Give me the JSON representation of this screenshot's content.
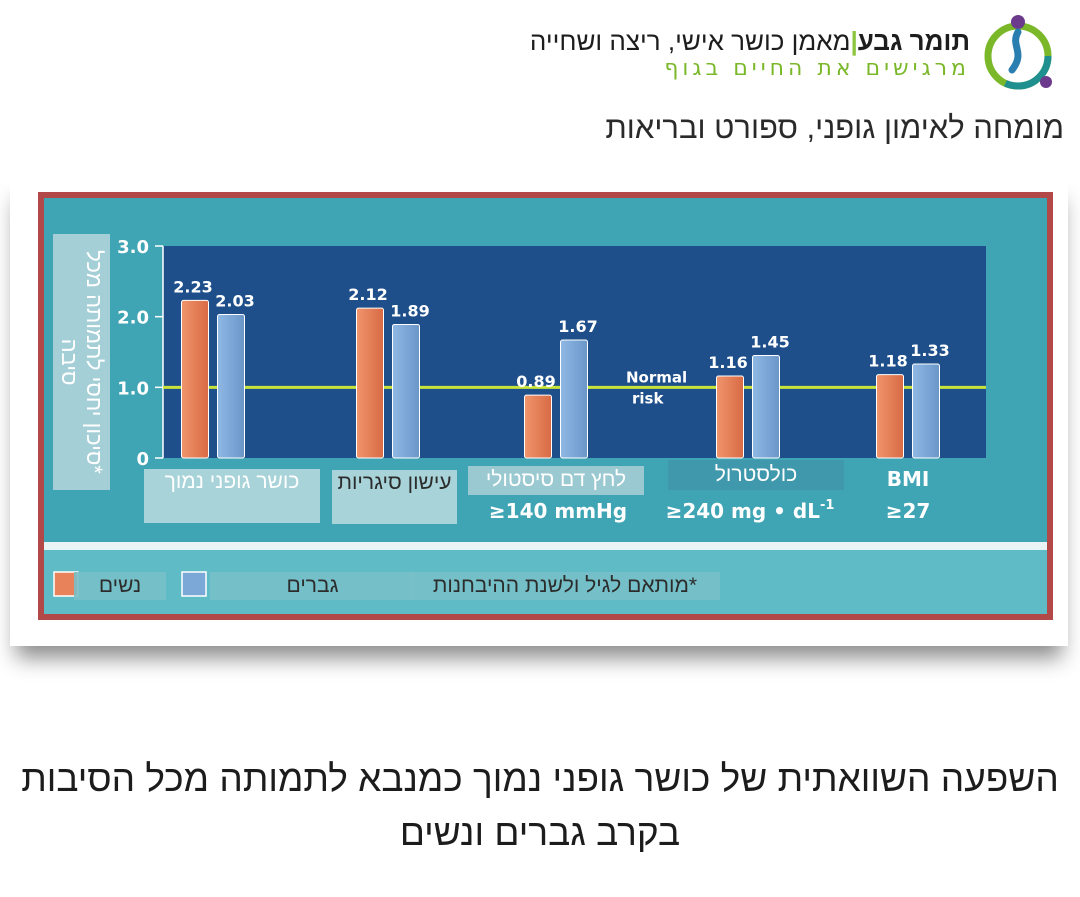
{
  "header": {
    "brand_name": "תומר גבע",
    "brand_separator": "|",
    "brand_desc": "מאמן כושר אישי, ריצה ושחייה",
    "tagline": "מרגישים את החיים בגוף",
    "subtitle": "מומחה לאימון גופני, ספורט ובריאות",
    "logo_icon": "runner-logo-icon"
  },
  "chart_data": {
    "type": "bar",
    "categories": [
      "כושר גופני נמוך",
      "עישון סיגריות",
      "לחץ דם סיסטולי",
      "כולסטרול",
      "BMI"
    ],
    "category_subtitles": [
      "",
      "",
      "≥140 mmHg",
      "≥240 mg • dL",
      "≥27"
    ],
    "series": [
      {
        "name": "נשים",
        "values": [
          2.23,
          2.12,
          0.89,
          1.16,
          1.18
        ]
      },
      {
        "name": "גברים",
        "values": [
          2.03,
          1.89,
          1.67,
          1.45,
          1.33
        ]
      }
    ],
    "ylabel": "*סיכון יחסי לתמותה מכל סיבה",
    "yticks": [
      "0",
      "1.0",
      "2.0",
      "3.0"
    ],
    "ylim": [
      0,
      3.0
    ],
    "reference_line": {
      "value": 1.0,
      "label": "Normal risk",
      "label_line1": "Normal",
      "label_line2": "risk"
    },
    "superscript": "-1",
    "footnote": "*מותאם לגיל ולשנת ההיבחנות",
    "colors": {
      "women": "#e8825a",
      "men": "#7ca8d8",
      "plot_bg": "#1e4f8a",
      "frame": "#3aa3b3",
      "border": "#b44a4a",
      "reference": "#c8e43a"
    }
  },
  "caption": {
    "line1": "השפעה השוואתית של כושר גופני נמוך כמנבא לתמותה מכל הסיבות",
    "line2": "בקרב גברים ונשים"
  }
}
